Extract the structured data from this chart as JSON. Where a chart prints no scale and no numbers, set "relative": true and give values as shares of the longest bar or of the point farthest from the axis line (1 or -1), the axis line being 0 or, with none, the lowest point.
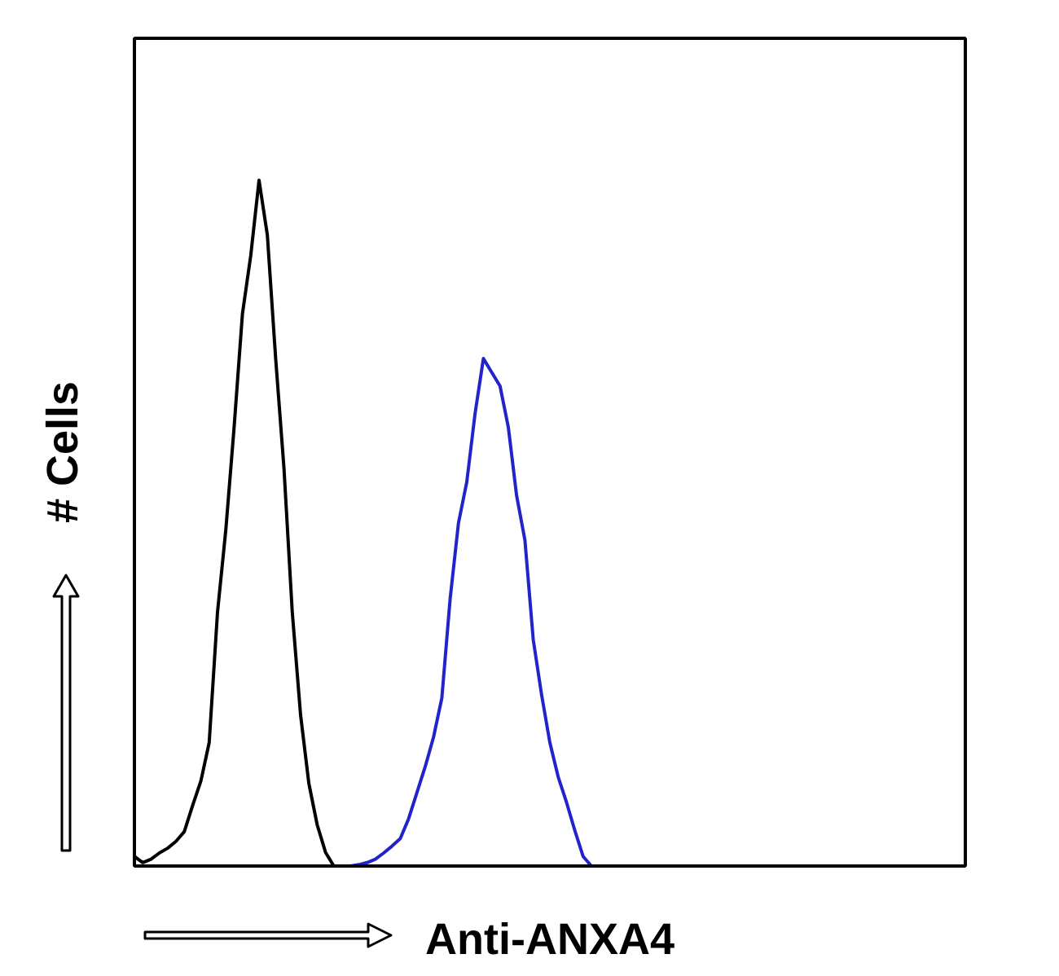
{
  "chart_data": {
    "type": "line",
    "xlabel": "Anti-ANXA4",
    "ylabel": "# Cells",
    "relative": true,
    "line_style": "solid",
    "categories": [
      null,
      null,
      null,
      null,
      null,
      null,
      null,
      null,
      null,
      null,
      null,
      null,
      null,
      null,
      null,
      null,
      null,
      null,
      null,
      null,
      null,
      null,
      null,
      null,
      null,
      null,
      null,
      null,
      null,
      null,
      null,
      null,
      null,
      null,
      null,
      null,
      null,
      null,
      null,
      null,
      null,
      null,
      null,
      null,
      null,
      null,
      null,
      null,
      null,
      null,
      null,
      null,
      null,
      null,
      null,
      null,
      null,
      null,
      null,
      null,
      null,
      null,
      null,
      null,
      null,
      null,
      null,
      null,
      null,
      null,
      null,
      null,
      null,
      null,
      null,
      null,
      null,
      null,
      null,
      null,
      null,
      null,
      null,
      null,
      null,
      null,
      null,
      null,
      null,
      null,
      null,
      null,
      null,
      null,
      null,
      null,
      null,
      null,
      null,
      null,
      null
    ],
    "series": [
      {
        "color": "#000000",
        "values": [
          0.014,
          0.005,
          0.01,
          0.019,
          0.026,
          0.036,
          0.05,
          0.088,
          0.124,
          0.18,
          0.37,
          0.49,
          0.64,
          0.805,
          0.89,
          1.0,
          0.92,
          0.74,
          0.58,
          0.37,
          0.22,
          0.12,
          0.06,
          0.02,
          0,
          null,
          null,
          null,
          null,
          null,
          null,
          null,
          null,
          null,
          null,
          null,
          null,
          null,
          null,
          null,
          null,
          null,
          null,
          null,
          null,
          null,
          null,
          null,
          null,
          null,
          null,
          null,
          null,
          null,
          null,
          null,
          null,
          null,
          null,
          null,
          null,
          null,
          null,
          null,
          null,
          null,
          null,
          null,
          null,
          null,
          null,
          null,
          null,
          null,
          null,
          null,
          null,
          null,
          null,
          null,
          null,
          null,
          null,
          null,
          null,
          null,
          null,
          null,
          null,
          null,
          null,
          null,
          null,
          null,
          null,
          null,
          null,
          null,
          null,
          null,
          null
        ]
      },
      {
        "color": "#2323cc",
        "values": [
          null,
          null,
          null,
          null,
          null,
          null,
          null,
          null,
          null,
          null,
          null,
          null,
          null,
          null,
          null,
          null,
          null,
          null,
          null,
          null,
          null,
          null,
          null,
          null,
          null,
          null,
          0,
          0.002,
          0.005,
          0.01,
          0.019,
          0.029,
          0.04,
          0.069,
          0.107,
          0.145,
          0.188,
          0.245,
          0.39,
          0.5,
          0.56,
          0.66,
          0.74,
          0.72,
          0.7,
          0.64,
          0.54,
          0.475,
          0.33,
          0.25,
          0.18,
          0.13,
          0.093,
          0.052,
          0.014,
          0,
          null,
          null,
          null,
          null,
          null,
          null,
          null,
          null,
          null,
          null,
          null,
          null,
          null,
          null,
          null,
          null,
          null,
          null,
          null,
          null,
          null,
          null,
          null,
          null,
          null,
          null,
          null,
          null,
          null,
          null,
          null,
          null,
          null,
          null,
          null,
          null,
          null,
          null,
          null,
          null,
          null,
          null,
          null,
          null,
          null
        ]
      }
    ]
  }
}
